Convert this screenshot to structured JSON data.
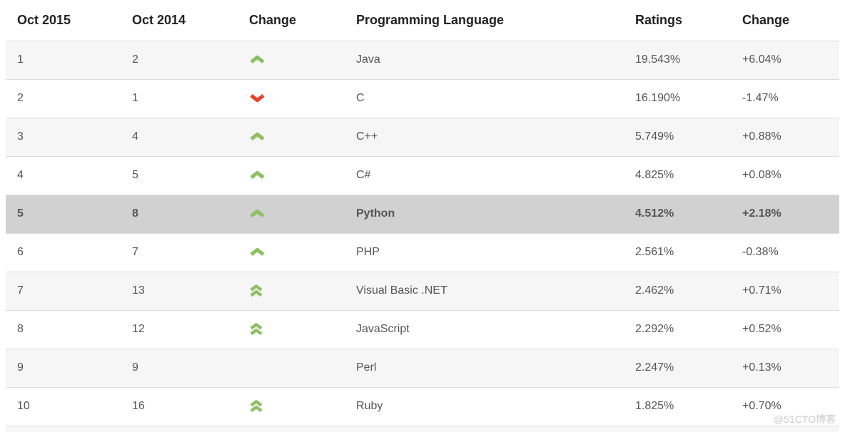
{
  "table": {
    "headers": [
      "Oct 2015",
      "Oct 2014",
      "Change",
      "Programming Language",
      "Ratings",
      "Change"
    ],
    "rows": [
      {
        "oct2015": "1",
        "oct2014": "2",
        "change": "up",
        "language": "Java",
        "ratings": "19.543%",
        "delta": "+6.04%",
        "highlighted": false
      },
      {
        "oct2015": "2",
        "oct2014": "1",
        "change": "down",
        "language": "C",
        "ratings": "16.190%",
        "delta": "-1.47%",
        "highlighted": false
      },
      {
        "oct2015": "3",
        "oct2014": "4",
        "change": "up",
        "language": "C++",
        "ratings": "5.749%",
        "delta": "+0.88%",
        "highlighted": false
      },
      {
        "oct2015": "4",
        "oct2014": "5",
        "change": "up",
        "language": "C#",
        "ratings": "4.825%",
        "delta": "+0.08%",
        "highlighted": false
      },
      {
        "oct2015": "5",
        "oct2014": "8",
        "change": "up",
        "language": "Python",
        "ratings": "4.512%",
        "delta": "+2.18%",
        "highlighted": true
      },
      {
        "oct2015": "6",
        "oct2014": "7",
        "change": "up",
        "language": "PHP",
        "ratings": "2.561%",
        "delta": "-0.38%",
        "highlighted": false
      },
      {
        "oct2015": "7",
        "oct2014": "13",
        "change": "double-up",
        "language": "Visual Basic .NET",
        "ratings": "2.462%",
        "delta": "+0.71%",
        "highlighted": false
      },
      {
        "oct2015": "8",
        "oct2014": "12",
        "change": "double-up",
        "language": "JavaScript",
        "ratings": "2.292%",
        "delta": "+0.52%",
        "highlighted": false
      },
      {
        "oct2015": "9",
        "oct2014": "9",
        "change": "none",
        "language": "Perl",
        "ratings": "2.247%",
        "delta": "+0.13%",
        "highlighted": false
      },
      {
        "oct2015": "10",
        "oct2014": "16",
        "change": "double-up",
        "language": "Ruby",
        "ratings": "1.825%",
        "delta": "+0.70%",
        "highlighted": false
      }
    ]
  },
  "colors": {
    "arrow_up": "#8DC063",
    "arrow_down": "#E8432A",
    "highlight_row_bg": "#d1d1d1",
    "stripe_row_bg": "#f6f6f6"
  },
  "watermark": "@51CTO博客"
}
